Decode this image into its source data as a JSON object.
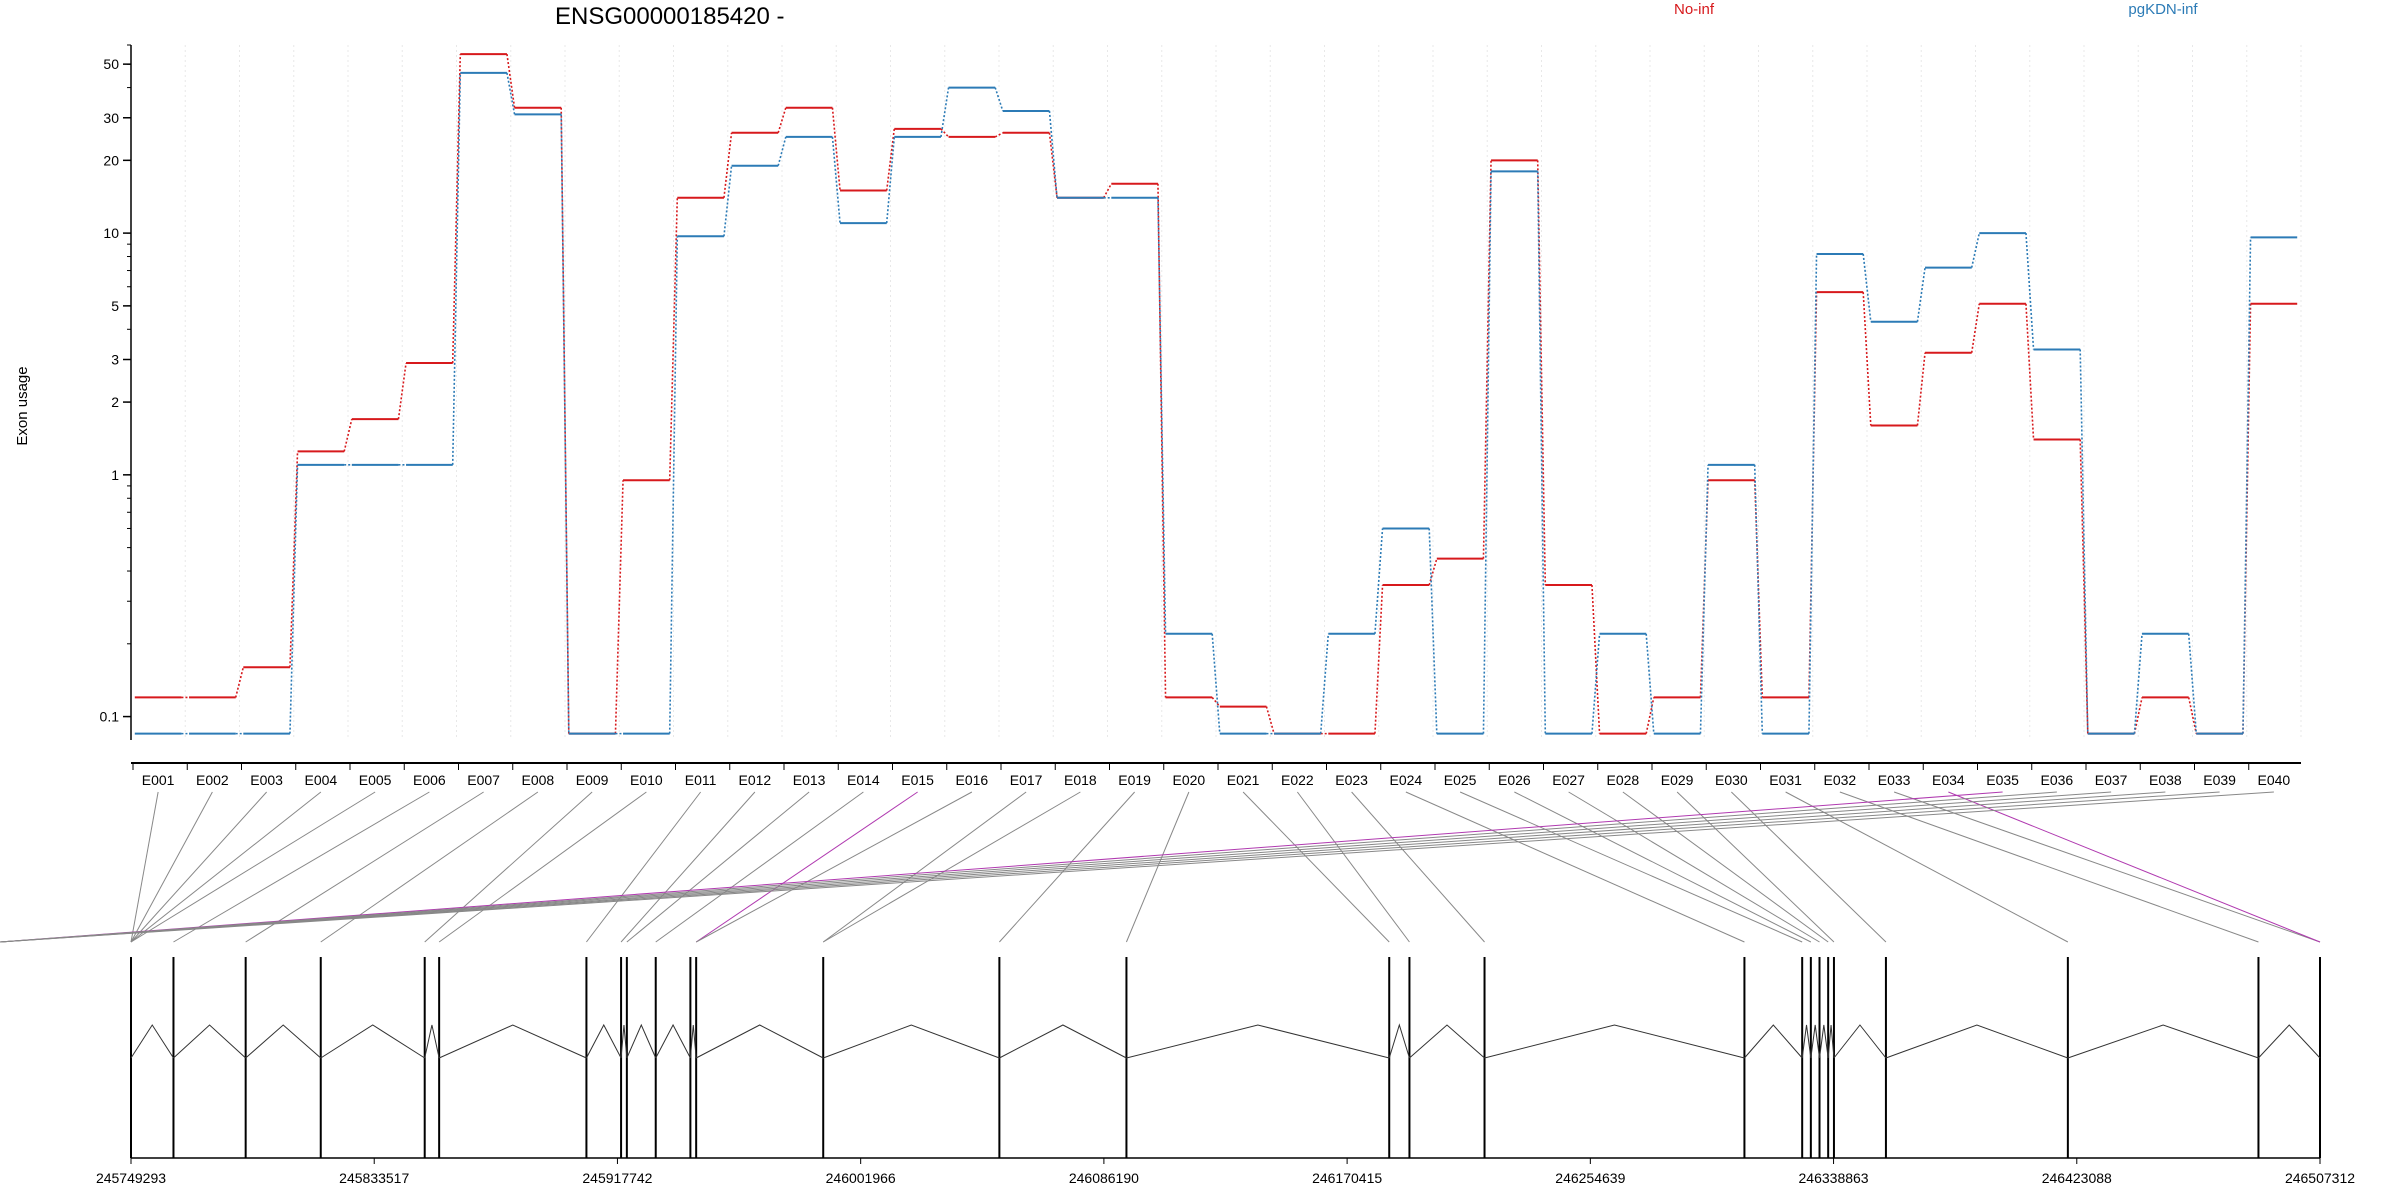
{
  "chart_data": {
    "type": "line",
    "title": "ENSG00000185420 -",
    "ylabel": "Exon usage",
    "yscale": "log",
    "ylim": [
      0.08,
      60
    ],
    "yticks": [
      0.1,
      1,
      2,
      3,
      5,
      10,
      20,
      30,
      50
    ],
    "ytick_labels": [
      "0.1",
      "1",
      "2",
      "3",
      "5",
      "10",
      "20",
      "30",
      "50"
    ],
    "grid": "vertical",
    "legend_position": "top-right",
    "categories": [
      "E001",
      "E002",
      "E003",
      "E004",
      "E005",
      "E006",
      "E007",
      "E008",
      "E009",
      "E010",
      "E011",
      "E012",
      "E013",
      "E014",
      "E015",
      "E016",
      "E017",
      "E018",
      "E019",
      "E020",
      "E021",
      "E022",
      "E023",
      "E024",
      "E025",
      "E026",
      "E027",
      "E028",
      "E029",
      "E030",
      "E031",
      "E032",
      "E033",
      "E034",
      "E035",
      "E036",
      "E037",
      "E038",
      "E039",
      "E040"
    ],
    "series": [
      {
        "name": "No-inf",
        "color": "#d7191c",
        "values": [
          0.12,
          0.12,
          0.16,
          1.25,
          1.7,
          2.9,
          55,
          33,
          0.085,
          0.95,
          14,
          26,
          33,
          15,
          27,
          25,
          26,
          14,
          16,
          0.12,
          0.11,
          0.085,
          0.085,
          0.35,
          0.45,
          20,
          0.35,
          0.085,
          0.12,
          0.95,
          0.12,
          5.7,
          1.6,
          3.2,
          5.1,
          1.4,
          0.085,
          0.12,
          0.085,
          5.1
        ]
      },
      {
        "name": "pgKDN-inf",
        "color": "#2c7bb6",
        "values": [
          0.085,
          0.085,
          0.085,
          1.1,
          1.1,
          1.1,
          46,
          31,
          0.085,
          0.085,
          9.7,
          19,
          25,
          11,
          25,
          40,
          32,
          14,
          14,
          0.22,
          0.085,
          0.085,
          0.22,
          0.6,
          0.085,
          18,
          0.085,
          0.22,
          0.085,
          1.1,
          0.085,
          8.2,
          4.3,
          7.2,
          10,
          3.3,
          0.085,
          0.22,
          0.085,
          9.6
        ]
      }
    ],
    "genome_axis": {
      "ticks": [
        "245749293",
        "245833517",
        "245917742",
        "246001966",
        "246086190",
        "246170415",
        "246254639",
        "246338863",
        "246423088",
        "246507312"
      ],
      "start": 245749293,
      "end": 246507312,
      "exon_positions": [
        245749293,
        245764000,
        245789000,
        245815000,
        245851000,
        245856000,
        245907000,
        245919000,
        245921000,
        245931000,
        245943000,
        245945000,
        245989000,
        246050000,
        246094000,
        246185000,
        246192000,
        246218000,
        246308000,
        246328000,
        246331000,
        246334000,
        246337000,
        246339000,
        246357000,
        246420000,
        246486000,
        246507312
      ],
      "exon_link_targets": [
        0,
        0,
        0,
        0,
        0,
        1,
        2,
        3,
        4,
        5,
        6,
        7,
        8,
        9,
        11,
        11,
        12,
        12,
        13,
        14,
        15,
        16,
        17,
        18,
        19,
        20,
        21,
        22,
        23,
        24,
        25,
        26,
        27,
        27,
        28,
        29,
        30,
        31,
        32,
        33
      ],
      "highlighted_links": [
        14,
        33,
        34
      ]
    }
  }
}
